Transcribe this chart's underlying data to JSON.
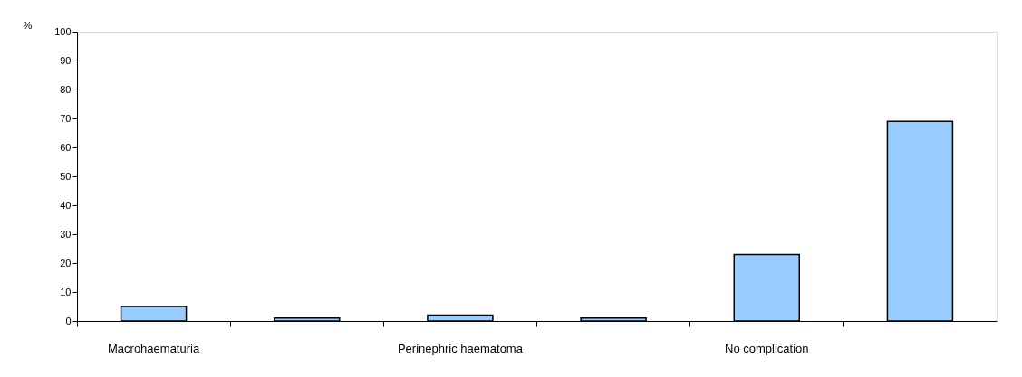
{
  "chart_data": {
    "type": "bar",
    "ylabel": "%",
    "categories": [
      "Macrohaematuria",
      null,
      "Perinephric haematoma",
      null,
      "No complication",
      null
    ],
    "values": [
      5,
      1,
      2,
      1,
      23,
      69
    ],
    "color": "#99ccff",
    "ylim": [
      0,
      100
    ],
    "yticks": [
      0,
      10,
      20,
      30,
      40,
      50,
      60,
      70,
      80,
      90,
      100
    ],
    "grid": false
  }
}
